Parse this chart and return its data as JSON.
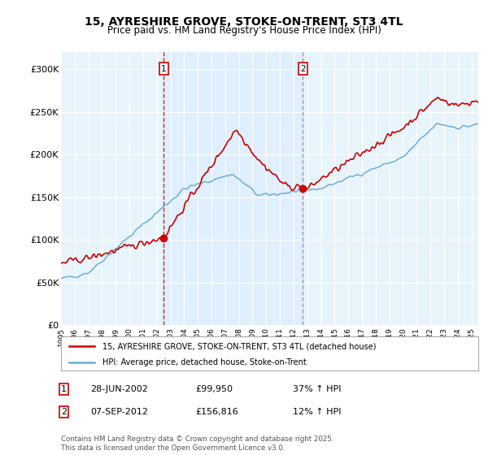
{
  "title": "15, AYRESHIRE GROVE, STOKE-ON-TRENT, ST3 4TL",
  "subtitle": "Price paid vs. HM Land Registry's House Price Index (HPI)",
  "ylim": [
    0,
    320000
  ],
  "yticks": [
    0,
    50000,
    100000,
    150000,
    200000,
    250000,
    300000
  ],
  "ytick_labels": [
    "£0",
    "£50K",
    "£100K",
    "£150K",
    "£200K",
    "£250K",
    "£300K"
  ],
  "hpi_color": "#6baed6",
  "price_color": "#cc0000",
  "vline1_color": "#cc0000",
  "vline2_color": "#8888aa",
  "shade_color": "#ddeeff",
  "marker1_year": 2002.5,
  "marker1_price": 99950,
  "marker1_date_label": "28-JUN-2002",
  "marker1_hpi_pct": "37% ↑ HPI",
  "marker2_year": 2012.67,
  "marker2_price": 156816,
  "marker2_date_label": "07-SEP-2012",
  "marker2_hpi_pct": "12% ↑ HPI",
  "legend_line1": "15, AYRESHIRE GROVE, STOKE-ON-TRENT, ST3 4TL (detached house)",
  "legend_line2": "HPI: Average price, detached house, Stoke-on-Trent",
  "footer": "Contains HM Land Registry data © Crown copyright and database right 2025.\nThis data is licensed under the Open Government Licence v3.0.",
  "background_color": "#ffffff",
  "plot_bg_color": "#e8f4fc"
}
